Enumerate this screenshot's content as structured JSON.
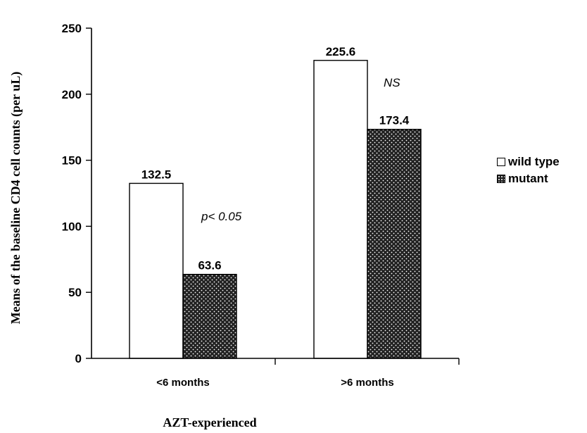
{
  "chart_data": {
    "type": "bar",
    "ylabel": "Means of the baseline CD4 cell counts (per uL)",
    "xlabel": "AZT-experienced",
    "categories": [
      "<6 months",
      ">6 months"
    ],
    "series": [
      {
        "name": "wild type",
        "values": [
          132.5,
          225.6
        ],
        "labels": [
          "132.5",
          "225.6"
        ],
        "color": "#ffffff"
      },
      {
        "name": "mutant",
        "values": [
          63.6,
          173.4
        ],
        "labels": [
          "63.6",
          "173.4"
        ],
        "color": "#222222"
      }
    ],
    "ylim": [
      0,
      250
    ],
    "yticks": [
      0,
      50,
      100,
      150,
      200,
      250
    ],
    "annotations": [
      "p< 0.05",
      "NS"
    ],
    "legend_position": "right",
    "grid": false
  }
}
